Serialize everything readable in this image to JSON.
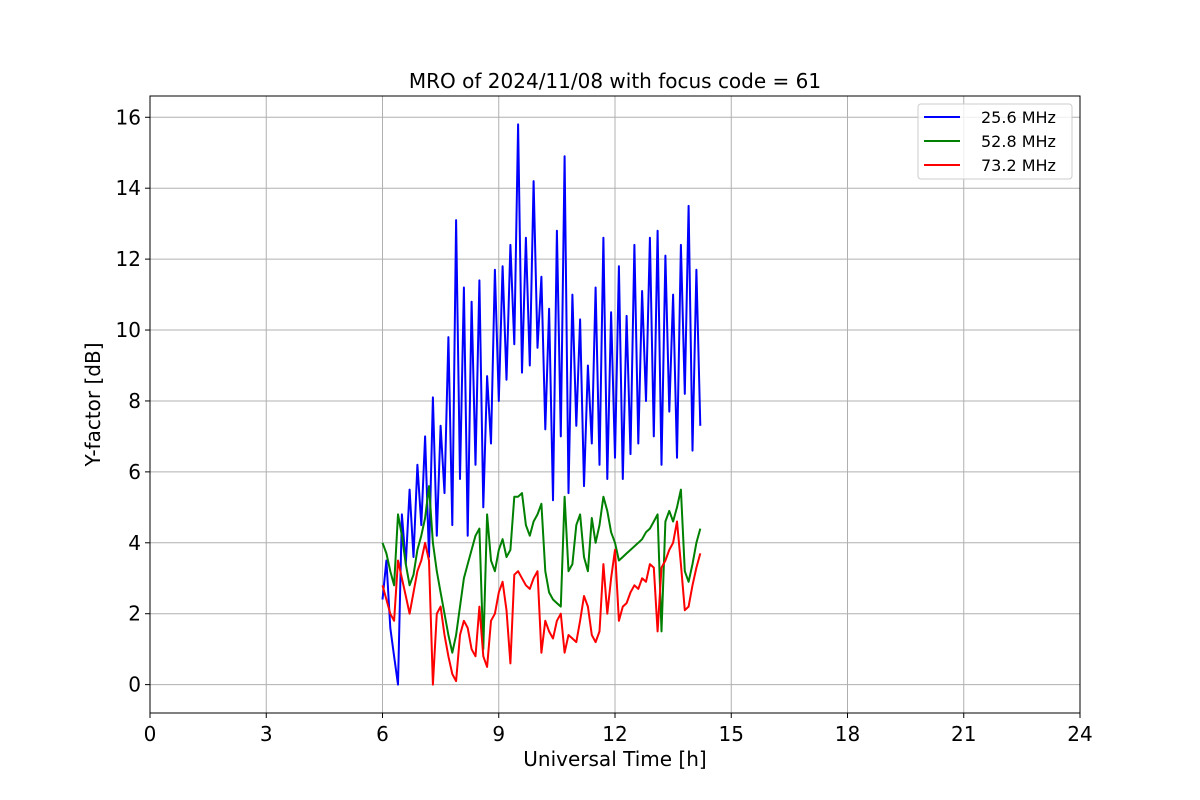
{
  "chart_data": {
    "type": "line",
    "title": "MRO of 2024/11/08 with focus code = 61",
    "xlabel": "Universal Time [h]",
    "ylabel": "Y-factor [dB]",
    "xlim": [
      0,
      24
    ],
    "ylim": [
      -0.8,
      16.6
    ],
    "xticks": [
      0,
      3,
      6,
      9,
      12,
      15,
      18,
      21,
      24
    ],
    "yticks": [
      0,
      2,
      4,
      6,
      8,
      10,
      12,
      14,
      16
    ],
    "grid": true,
    "legend_position": "top-right",
    "series": [
      {
        "name": "25.6 MHz",
        "color": "#0000ff",
        "x": [
          6.0,
          6.1,
          6.2,
          6.3,
          6.4,
          6.5,
          6.6,
          6.7,
          6.8,
          6.9,
          7.0,
          7.1,
          7.2,
          7.3,
          7.4,
          7.5,
          7.6,
          7.7,
          7.8,
          7.9,
          8.0,
          8.1,
          8.2,
          8.3,
          8.4,
          8.5,
          8.6,
          8.7,
          8.8,
          8.9,
          9.0,
          9.1,
          9.2,
          9.3,
          9.4,
          9.5,
          9.6,
          9.7,
          9.8,
          9.9,
          10.0,
          10.1,
          10.2,
          10.3,
          10.4,
          10.5,
          10.6,
          10.7,
          10.8,
          10.9,
          11.0,
          11.1,
          11.2,
          11.3,
          11.4,
          11.5,
          11.6,
          11.7,
          11.8,
          11.9,
          12.0,
          12.1,
          12.2,
          12.3,
          12.4,
          12.5,
          12.6,
          12.7,
          12.8,
          12.9,
          13.0,
          13.1,
          13.2,
          13.3,
          13.4,
          13.5,
          13.6,
          13.7,
          13.8,
          13.9,
          14.0,
          14.1,
          14.2
        ],
        "y": [
          2.4,
          3.5,
          1.6,
          0.8,
          0.0,
          4.8,
          3.4,
          5.5,
          3.6,
          6.2,
          4.5,
          7.0,
          3.6,
          8.1,
          4.2,
          7.3,
          5.4,
          9.8,
          4.5,
          13.1,
          5.8,
          11.2,
          4.2,
          10.8,
          6.2,
          11.4,
          5.0,
          8.7,
          6.8,
          11.7,
          8.0,
          11.8,
          8.6,
          12.4,
          9.6,
          15.8,
          8.8,
          12.6,
          9.0,
          14.2,
          9.5,
          11.5,
          7.2,
          10.6,
          5.2,
          12.8,
          7.0,
          14.9,
          5.4,
          11.0,
          7.3,
          10.3,
          5.6,
          9.0,
          6.8,
          11.2,
          6.2,
          12.6,
          5.8,
          10.5,
          6.4,
          11.8,
          5.8,
          10.4,
          6.5,
          12.4,
          6.8,
          11.1,
          8.0,
          12.6,
          7.0,
          12.8,
          6.2,
          12.1,
          7.7,
          11.0,
          6.4,
          12.4,
          8.2,
          13.5,
          6.6,
          11.7,
          7.3
        ]
      },
      {
        "name": "52.8 MHz",
        "color": "#008000",
        "x": [
          6.0,
          6.1,
          6.2,
          6.3,
          6.4,
          6.5,
          6.6,
          6.7,
          6.8,
          6.9,
          7.0,
          7.1,
          7.2,
          7.3,
          7.4,
          7.5,
          7.6,
          7.7,
          7.8,
          7.9,
          8.0,
          8.1,
          8.2,
          8.3,
          8.4,
          8.5,
          8.6,
          8.7,
          8.8,
          8.9,
          9.0,
          9.1,
          9.2,
          9.3,
          9.4,
          9.5,
          9.6,
          9.7,
          9.8,
          9.9,
          10.0,
          10.1,
          10.2,
          10.3,
          10.4,
          10.5,
          10.6,
          10.7,
          10.8,
          10.9,
          11.0,
          11.1,
          11.2,
          11.3,
          11.4,
          11.5,
          11.6,
          11.7,
          11.8,
          11.9,
          12.0,
          12.1,
          12.2,
          12.3,
          12.4,
          12.5,
          12.6,
          12.7,
          12.8,
          12.9,
          13.0,
          13.1,
          13.2,
          13.3,
          13.4,
          13.5,
          13.6,
          13.7,
          13.8,
          13.9,
          14.0,
          14.1,
          14.2
        ],
        "y": [
          4.0,
          3.7,
          3.2,
          2.8,
          4.8,
          4.2,
          3.4,
          2.8,
          3.1,
          3.8,
          4.2,
          4.7,
          5.6,
          4.0,
          3.2,
          2.6,
          2.0,
          1.4,
          0.9,
          1.4,
          2.2,
          3.0,
          3.4,
          3.8,
          4.2,
          4.4,
          1.0,
          4.8,
          3.5,
          3.2,
          3.8,
          4.1,
          3.6,
          3.8,
          5.3,
          5.3,
          5.4,
          4.5,
          4.2,
          4.6,
          4.8,
          5.1,
          3.2,
          2.6,
          2.4,
          2.3,
          2.2,
          5.3,
          3.2,
          3.4,
          4.5,
          4.8,
          3.6,
          3.2,
          4.7,
          4.0,
          4.5,
          5.3,
          4.9,
          4.3,
          4.0,
          3.5,
          3.6,
          3.7,
          3.8,
          3.9,
          4.0,
          4.1,
          4.3,
          4.4,
          4.6,
          4.8,
          1.5,
          4.6,
          4.9,
          4.6,
          5.0,
          5.5,
          3.2,
          2.9,
          3.4,
          4.0,
          4.4
        ]
      },
      {
        "name": "73.2 MHz",
        "color": "#ff0000",
        "x": [
          6.0,
          6.1,
          6.2,
          6.3,
          6.4,
          6.5,
          6.6,
          6.7,
          6.8,
          6.9,
          7.0,
          7.1,
          7.2,
          7.3,
          7.4,
          7.5,
          7.6,
          7.7,
          7.8,
          7.9,
          8.0,
          8.1,
          8.2,
          8.3,
          8.4,
          8.5,
          8.6,
          8.7,
          8.8,
          8.9,
          9.0,
          9.1,
          9.2,
          9.3,
          9.4,
          9.5,
          9.6,
          9.7,
          9.8,
          9.9,
          10.0,
          10.1,
          10.2,
          10.3,
          10.4,
          10.5,
          10.6,
          10.7,
          10.8,
          10.9,
          11.0,
          11.1,
          11.2,
          11.3,
          11.4,
          11.5,
          11.6,
          11.7,
          11.8,
          11.9,
          12.0,
          12.1,
          12.2,
          12.3,
          12.4,
          12.5,
          12.6,
          12.7,
          12.8,
          12.9,
          13.0,
          13.1,
          13.2,
          13.3,
          13.4,
          13.5,
          13.6,
          13.7,
          13.8,
          13.9,
          14.0,
          14.1,
          14.2
        ],
        "y": [
          2.8,
          2.4,
          2.0,
          1.8,
          3.5,
          3.0,
          2.5,
          2.0,
          2.6,
          3.2,
          3.5,
          4.0,
          3.5,
          0.0,
          2.0,
          2.2,
          1.4,
          0.8,
          0.3,
          0.1,
          1.4,
          1.8,
          1.6,
          1.0,
          0.8,
          2.2,
          0.8,
          0.5,
          1.8,
          2.0,
          2.6,
          2.9,
          2.1,
          0.6,
          3.1,
          3.2,
          3.0,
          2.8,
          2.7,
          3.0,
          3.2,
          0.9,
          1.8,
          1.5,
          1.3,
          1.8,
          2.0,
          0.9,
          1.4,
          1.3,
          1.2,
          1.8,
          2.5,
          2.2,
          1.4,
          1.2,
          1.5,
          3.4,
          2.0,
          3.0,
          3.8,
          1.8,
          2.2,
          2.3,
          2.6,
          2.8,
          2.7,
          3.0,
          2.9,
          3.4,
          3.3,
          1.5,
          3.3,
          3.5,
          3.8,
          4.0,
          4.6,
          3.4,
          2.1,
          2.2,
          2.8,
          3.3,
          3.7
        ]
      }
    ]
  }
}
